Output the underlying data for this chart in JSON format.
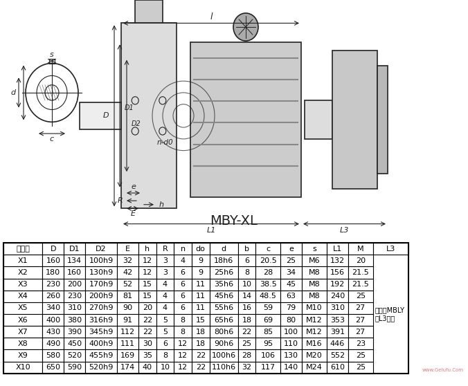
{
  "title": "MBY-XL",
  "table_headers": [
    "机型号",
    "D",
    "D1",
    "D2",
    "E",
    "h",
    "R",
    "n",
    "do",
    "d",
    "b",
    "c",
    "e",
    "s",
    "L1",
    "M",
    "L3"
  ],
  "table_rows": [
    [
      "X1",
      "160",
      "134",
      "100h9",
      "32",
      "12",
      "3",
      "4",
      "9",
      "18h6",
      "6",
      "20.5",
      "25",
      "M6",
      "132",
      "20",
      ""
    ],
    [
      "X2",
      "180",
      "160",
      "130h9",
      "42",
      "12",
      "3",
      "6",
      "9",
      "25h6",
      "8",
      "28",
      "34",
      "M8",
      "156",
      "21.5",
      ""
    ],
    [
      "X3",
      "230",
      "200",
      "170h9",
      "52",
      "15",
      "4",
      "6",
      "11",
      "35h6",
      "10",
      "38.5",
      "45",
      "M8",
      "192",
      "21.5",
      ""
    ],
    [
      "X4",
      "260",
      "230",
      "200h9",
      "81",
      "15",
      "4",
      "6",
      "11",
      "45h6",
      "14",
      "48.5",
      "63",
      "M8",
      "240",
      "25",
      ""
    ],
    [
      "X5",
      "340",
      "310",
      "270h9",
      "90",
      "20",
      "4",
      "6",
      "11",
      "55h6",
      "16",
      "59",
      "79",
      "M10",
      "310",
      "27",
      ""
    ],
    [
      "X6",
      "400",
      "380",
      "316h9",
      "91",
      "22",
      "5",
      "8",
      "15",
      "65h6",
      "18",
      "69",
      "80",
      "M12",
      "353",
      "27",
      ""
    ],
    [
      "X7",
      "430",
      "390",
      "345h9",
      "112",
      "22",
      "5",
      "8",
      "18",
      "80h6",
      "22",
      "85",
      "100",
      "M12",
      "391",
      "27",
      ""
    ],
    [
      "X8",
      "490",
      "450",
      "400h9",
      "111",
      "30",
      "6",
      "12",
      "18",
      "90h6",
      "25",
      "95",
      "110",
      "M16",
      "446",
      "23",
      ""
    ],
    [
      "X9",
      "580",
      "520",
      "455h9",
      "169",
      "35",
      "8",
      "12",
      "22",
      "100h6",
      "28",
      "106",
      "130",
      "M20",
      "552",
      "25",
      ""
    ],
    [
      "X10",
      "650",
      "590",
      "520h9",
      "174",
      "40",
      "10",
      "12",
      "22",
      "110h6",
      "32",
      "117",
      "140",
      "M24",
      "610",
      "25",
      ""
    ]
  ],
  "side_note_rows": [
    4,
    5
  ],
  "side_note": "由所配MBLY\n的L3决定",
  "bg_color": "#ffffff",
  "table_border_color": "#000000",
  "header_row_color": "#ffffff",
  "drawing_area_color": "#f5f5f0",
  "font_size_table": 8,
  "font_size_title": 14
}
